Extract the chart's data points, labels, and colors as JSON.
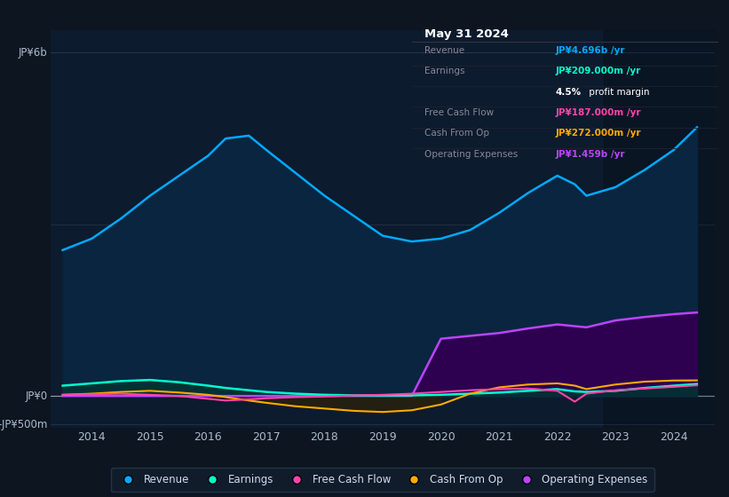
{
  "background_color": "#0d1520",
  "chart_bg_color": "#0d1b2e",
  "ylabel_top": "JP¥6b",
  "ylabel_zero": "JP¥0",
  "ylabel_neg": "-JP¥500m",
  "info_box": {
    "title": "May 31 2024",
    "rows": [
      {
        "label": "Revenue",
        "value": "JP¥4.696b /yr",
        "value_color": "#00aaff"
      },
      {
        "label": "Earnings",
        "value": "JP¥209.000m /yr",
        "value_color": "#00ffcc"
      },
      {
        "label": "",
        "value": "4.5% profit margin",
        "value_color": "#ffffff"
      },
      {
        "label": "Free Cash Flow",
        "value": "JP¥187.000m /yr",
        "value_color": "#ff44aa"
      },
      {
        "label": "Cash From Op",
        "value": "JP¥272.000m /yr",
        "value_color": "#ffaa00"
      },
      {
        "label": "Operating Expenses",
        "value": "JP¥1.459b /yr",
        "value_color": "#bb44ff"
      }
    ]
  },
  "revenue_color": "#00aaff",
  "earnings_color": "#00ffcc",
  "free_cash_flow_color": "#ff44aa",
  "cash_from_op_color": "#ffaa00",
  "operating_expenses_color": "#bb44ff",
  "legend_items": [
    {
      "label": "Revenue",
      "color": "#00aaff"
    },
    {
      "label": "Earnings",
      "color": "#00ffcc"
    },
    {
      "label": "Free Cash Flow",
      "color": "#ff44aa"
    },
    {
      "label": "Cash From Op",
      "color": "#ffaa00"
    },
    {
      "label": "Operating Expenses",
      "color": "#bb44ff"
    }
  ],
  "years": [
    2013.5,
    2014.0,
    2014.5,
    2015.0,
    2015.5,
    2016.0,
    2016.3,
    2016.7,
    2017.0,
    2017.5,
    2018.0,
    2018.5,
    2019.0,
    2019.5,
    2020.0,
    2020.5,
    2021.0,
    2021.5,
    2022.0,
    2022.3,
    2022.5,
    2023.0,
    2023.5,
    2024.0,
    2024.4
  ],
  "revenue": [
    2.55,
    2.75,
    3.1,
    3.5,
    3.85,
    4.2,
    4.5,
    4.55,
    4.3,
    3.9,
    3.5,
    3.15,
    2.8,
    2.7,
    2.75,
    2.9,
    3.2,
    3.55,
    3.85,
    3.7,
    3.5,
    3.65,
    3.95,
    4.3,
    4.696
  ],
  "earnings": [
    0.18,
    0.22,
    0.26,
    0.28,
    0.24,
    0.18,
    0.14,
    0.1,
    0.07,
    0.04,
    0.02,
    0.01,
    0.01,
    0.01,
    0.02,
    0.04,
    0.06,
    0.09,
    0.12,
    0.08,
    0.07,
    0.09,
    0.14,
    0.18,
    0.209
  ],
  "free_cash_flow": [
    0.02,
    0.03,
    0.04,
    0.02,
    0.0,
    -0.05,
    -0.08,
    -0.06,
    -0.04,
    -0.02,
    -0.01,
    0.01,
    0.02,
    0.04,
    0.07,
    0.1,
    0.12,
    0.13,
    0.09,
    -0.1,
    0.04,
    0.1,
    0.13,
    0.16,
    0.187
  ],
  "cash_from_op": [
    0.02,
    0.04,
    0.07,
    0.09,
    0.06,
    0.02,
    -0.02,
    -0.08,
    -0.12,
    -0.18,
    -0.22,
    -0.26,
    -0.28,
    -0.25,
    -0.15,
    0.04,
    0.15,
    0.2,
    0.22,
    0.18,
    0.12,
    0.2,
    0.25,
    0.27,
    0.272
  ],
  "operating_expenses": [
    0.0,
    0.0,
    0.0,
    0.0,
    0.0,
    0.0,
    0.0,
    0.0,
    0.0,
    0.0,
    0.0,
    0.0,
    0.0,
    0.0,
    1.0,
    1.05,
    1.1,
    1.18,
    1.25,
    1.22,
    1.2,
    1.32,
    1.38,
    1.43,
    1.459
  ],
  "ylim": [
    -0.55,
    6.4
  ],
  "xlim": [
    2013.3,
    2024.7
  ],
  "yticks": [
    6.0,
    3.0,
    0.0,
    -0.5
  ],
  "xtick_positions": [
    2014,
    2015,
    2016,
    2017,
    2018,
    2019,
    2020,
    2021,
    2022,
    2023,
    2024
  ]
}
